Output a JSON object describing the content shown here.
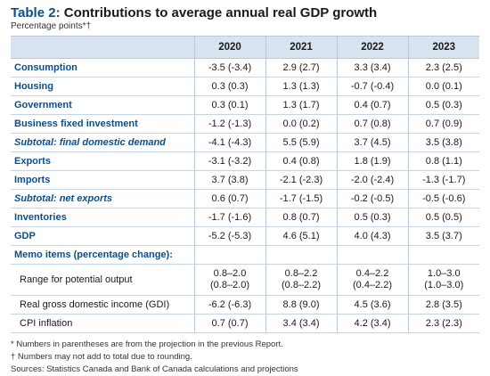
{
  "title": {
    "number": "Table 2:",
    "text": "Contributions to average annual real GDP growth"
  },
  "subtitle": "Percentage points*†",
  "columns": [
    "2020",
    "2021",
    "2022",
    "2023"
  ],
  "rows": [
    {
      "label": "Consumption",
      "values": [
        "-3.5 (-3.4)",
        "2.9 (2.7)",
        "3.3 (3.4)",
        "2.3 (2.5)"
      ]
    },
    {
      "label": "Housing",
      "values": [
        "0.3 (0.3)",
        "1.3 (1.3)",
        "-0.7 (-0.4)",
        "0.0 (0.1)"
      ]
    },
    {
      "label": "Government",
      "values": [
        "0.3 (0.1)",
        "1.3 (1.7)",
        "0.4 (0.7)",
        "0.5 (0.3)"
      ]
    },
    {
      "label": "Business fixed investment",
      "values": [
        "-1.2 (-1.3)",
        "0.0 (0.2)",
        "0.7 (0.8)",
        "0.7 (0.9)"
      ]
    },
    {
      "label": "Subtotal: final domestic demand",
      "values": [
        "-4.1 (-4.3)",
        "5.5 (5.9)",
        "3.7 (4.5)",
        "3.5 (3.8)"
      ]
    },
    {
      "label": "Exports",
      "values": [
        "-3.1 (-3.2)",
        "0.4 (0.8)",
        "1.8 (1.9)",
        "0.8 (1.1)"
      ]
    },
    {
      "label": "Imports",
      "values": [
        "3.7 (3.8)",
        "-2.1 (-2.3)",
        "-2.0 (-2.4)",
        "-1.3 (-1.7)"
      ]
    },
    {
      "label": "Subtotal: net exports",
      "values": [
        "0.6 (0.7)",
        "-1.7 (-1.5)",
        "-0.2 (-0.5)",
        "-0.5 (-0.6)"
      ]
    },
    {
      "label": "Inventories",
      "values": [
        "-1.7 (-1.6)",
        "0.8 (0.7)",
        "0.5 (0.3)",
        "0.5 (0.5)"
      ]
    },
    {
      "label": "GDP",
      "values": [
        "-5.2 (-5.3)",
        "4.6 (5.1)",
        "4.0 (4.3)",
        "3.5 (3.7)"
      ]
    }
  ],
  "memo": {
    "heading": "Memo items (percentage change):",
    "rows": [
      {
        "label": "Range for potential output",
        "values": [
          [
            "0.8–2.0",
            "(0.8–2.0)"
          ],
          [
            "0.8–2.2",
            "(0.8–2.2)"
          ],
          [
            "0.4–2.2",
            "(0.4–2.2)"
          ],
          [
            "1.0–3.0",
            "(1.0–3.0)"
          ]
        ]
      },
      {
        "label": "Real gross domestic income (GDI)",
        "values": [
          "-6.2 (-6.3)",
          "8.8 (9.0)",
          "4.5 (3.6)",
          "2.8 (3.5)"
        ]
      },
      {
        "label": "CPI inflation",
        "values": [
          "0.7 (0.7)",
          "3.4 (3.4)",
          "4.2 (3.4)",
          "2.3 (2.3)"
        ]
      }
    ]
  },
  "notes": [
    "*  Numbers in parentheses are from the projection in the previous Report.",
    "†  Numbers may not add to total due to rounding.",
    "Sources: Statistics Canada and Bank of Canada calculations and projections"
  ]
}
